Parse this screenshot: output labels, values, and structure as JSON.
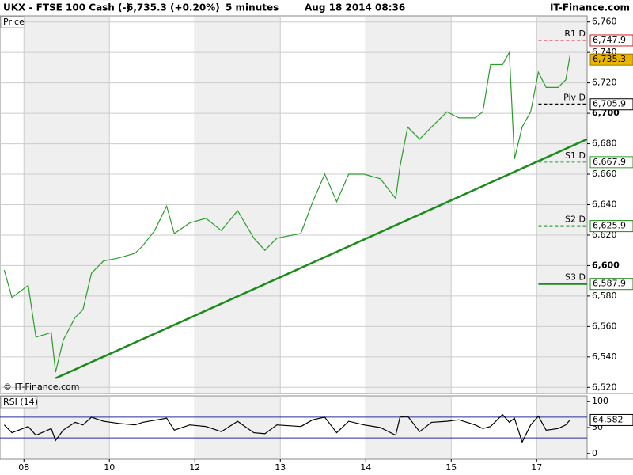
{
  "header": {
    "symbol": "UKX - FTSE 100 Cash (-)",
    "quote": "6,735.3 (+0.20%)",
    "interval": "5 minutes",
    "timestamp": "Aug 18 2014 08:36",
    "brand": "IT-Finance.com"
  },
  "chart_data": [
    {
      "type": "line",
      "panel_label": "Price",
      "watermark": "© IT-Finance.com",
      "color": "#2a9d2a",
      "x": [
        -0.23,
        -0.14,
        0.05,
        0.14,
        0.32,
        0.37,
        0.46,
        0.6,
        0.69,
        0.79,
        0.93,
        1.11,
        1.3,
        1.39,
        1.53,
        1.67,
        1.76,
        1.94,
        2.13,
        2.31,
        2.5,
        2.69,
        2.82,
        2.96,
        3.24,
        3.38,
        3.52,
        3.66,
        3.8,
        3.98,
        4.17,
        4.35,
        4.4,
        4.49,
        4.63,
        4.77,
        4.95,
        5.09,
        5.28,
        5.37,
        5.46,
        5.6,
        5.68,
        5.74,
        5.83,
        5.93,
        6.02,
        6.11,
        6.25,
        6.34,
        6.39
      ],
      "values": [
        6597,
        6579,
        6587,
        6553,
        6556,
        6530,
        6551,
        6566,
        6571,
        6595,
        6603,
        6605,
        6608,
        6613,
        6623,
        6639,
        6621,
        6628,
        6631,
        6623,
        6636,
        6618,
        6610,
        6618,
        6621,
        6642,
        6660,
        6642,
        6660,
        6660,
        6657,
        6644,
        6665,
        6691,
        6683,
        6691,
        6701,
        6697,
        6697,
        6701,
        6732,
        6732,
        6740,
        6670,
        6691,
        6701,
        6727,
        6717,
        6717,
        6722,
        6738
      ],
      "xlim": [
        -0.28,
        6.59
      ],
      "xticks": [
        {
          "value": 0,
          "label": "08"
        },
        {
          "value": 1,
          "label": "10"
        },
        {
          "value": 2,
          "label": "12"
        },
        {
          "value": 3,
          "label": "13"
        },
        {
          "value": 4,
          "label": "14"
        },
        {
          "value": 5,
          "label": "15"
        },
        {
          "value": 6,
          "label": "17"
        }
      ],
      "ylim": [
        6516,
        6764
      ],
      "yticks": [
        {
          "value": 6520,
          "label": "6,520"
        },
        {
          "value": 6540,
          "label": "6,540"
        },
        {
          "value": 6560,
          "label": "6,560"
        },
        {
          "value": 6580,
          "label": "6,580"
        },
        {
          "value": 6600,
          "label": "6,600"
        },
        {
          "value": 6620,
          "label": "6,620"
        },
        {
          "value": 6640,
          "label": "6,640"
        },
        {
          "value": 6660,
          "label": "6,660"
        },
        {
          "value": 6680,
          "label": "6,680"
        },
        {
          "value": 6700,
          "label": "6,700"
        },
        {
          "value": 6720,
          "label": "6,720"
        },
        {
          "value": 6740,
          "label": "6,740"
        },
        {
          "value": 6760,
          "label": "6,760"
        }
      ],
      "bold_ticks": [
        6600,
        6700
      ],
      "grid": true,
      "trendline": {
        "x": [
          0.37,
          6.59
        ],
        "values": [
          6526,
          6683
        ],
        "color": "#1a8a1a"
      },
      "levels": [
        {
          "name": "R1 D",
          "value": 6747.9,
          "label": "6,747.9",
          "color": "#d02020",
          "style": "dashed"
        },
        {
          "name": "Piv D",
          "value": 6705.9,
          "label": "6,705.9",
          "color": "#000000",
          "style": "dashed"
        },
        {
          "name": "S1 D",
          "value": 6667.9,
          "label": "6,667.9",
          "color": "#2a9d2a",
          "style": "dashed"
        },
        {
          "name": "S2 D",
          "value": 6625.9,
          "label": "6,625.9",
          "color": "#1a8a1a",
          "style": "dashed"
        },
        {
          "name": "S3 D",
          "value": 6587.9,
          "label": "6,587.9",
          "color": "#1a8a1a",
          "style": "solid"
        }
      ],
      "levels_start": 6.02,
      "last": {
        "value": 6735.3,
        "label": "6,735.3",
        "color": "#e8b400"
      }
    },
    {
      "type": "line",
      "panel_label": "RSI (14)",
      "color": "#000000",
      "x": [
        -0.23,
        -0.14,
        0.05,
        0.14,
        0.32,
        0.37,
        0.46,
        0.6,
        0.69,
        0.79,
        0.93,
        1.11,
        1.3,
        1.39,
        1.53,
        1.67,
        1.76,
        1.94,
        2.13,
        2.31,
        2.5,
        2.69,
        2.82,
        2.96,
        3.24,
        3.38,
        3.52,
        3.66,
        3.8,
        3.98,
        4.17,
        4.35,
        4.4,
        4.49,
        4.63,
        4.77,
        4.95,
        5.09,
        5.28,
        5.37,
        5.46,
        5.6,
        5.68,
        5.74,
        5.83,
        5.93,
        6.02,
        6.11,
        6.25,
        6.34,
        6.39
      ],
      "values": [
        55,
        40,
        52,
        35,
        48,
        25,
        45,
        60,
        55,
        70,
        62,
        58,
        55,
        60,
        64,
        68,
        45,
        55,
        52,
        42,
        62,
        40,
        38,
        55,
        52,
        65,
        70,
        40,
        62,
        55,
        50,
        35,
        70,
        72,
        42,
        60,
        62,
        65,
        55,
        48,
        52,
        75,
        60,
        68,
        22,
        55,
        72,
        45,
        48,
        55,
        64.582
      ],
      "xlim": [
        -0.28,
        6.59
      ],
      "ylim": [
        -11,
        111
      ],
      "yticks": [
        0,
        50,
        100
      ],
      "bands": [
        30,
        70
      ],
      "band_color": "#2a2a9a",
      "last": {
        "value": 64.582,
        "label": "64,582"
      }
    }
  ]
}
